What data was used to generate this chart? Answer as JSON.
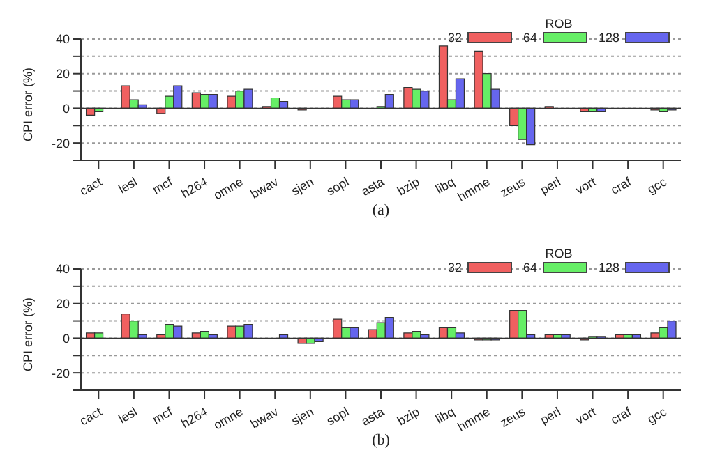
{
  "chart_data": [
    {
      "type": "bar",
      "ylabel": "CPI error (%)",
      "legend_title": "ROB",
      "legend": "top right",
      "grid": "y",
      "ylim": [
        -30,
        40
      ],
      "yticks": [
        {
          "value": -30,
          "label": null
        },
        -20,
        {
          "value": -10,
          "label": null
        },
        0,
        {
          "value": 10,
          "label": null
        },
        20,
        {
          "value": 30,
          "label": null
        },
        40
      ],
      "annotations": [
        "(a)"
      ],
      "categories": [
        "cact",
        "lesl",
        "mcf",
        "h264",
        "omne",
        "bwav",
        "sjen",
        "sopl",
        "asta",
        "bzip",
        "libq",
        "hmme",
        "zeus",
        "perl",
        "vort",
        "craf",
        "gcc"
      ],
      "series": [
        {
          "name": "32",
          "color": "#f06060",
          "values": [
            -4,
            13,
            -3,
            9,
            7,
            1,
            -1,
            7,
            0,
            12,
            36,
            33,
            -10,
            1,
            -2,
            0,
            -1
          ]
        },
        {
          "name": "64",
          "color": "#66ee66",
          "values": [
            -2,
            5,
            7,
            8,
            10,
            6,
            0,
            5,
            1,
            11,
            5,
            20,
            -18,
            0,
            -2,
            0,
            -2
          ]
        },
        {
          "name": "128",
          "color": "#6666ee",
          "values": [
            0,
            2,
            13,
            8,
            11,
            4,
            0,
            5,
            8,
            10,
            17,
            11,
            -21,
            0,
            -2,
            0,
            -1
          ]
        }
      ]
    },
    {
      "type": "bar",
      "ylabel": "CPI error (%)",
      "legend_title": "ROB",
      "legend": "top right",
      "grid": "y",
      "ylim": [
        -30,
        40
      ],
      "yticks": [
        {
          "value": -30,
          "label": null
        },
        -20,
        {
          "value": -10,
          "label": null
        },
        0,
        {
          "value": 10,
          "label": null
        },
        20,
        {
          "value": 30,
          "label": null
        },
        40
      ],
      "annotations": [
        "(b)"
      ],
      "categories": [
        "cact",
        "lesl",
        "mcf",
        "h264",
        "omne",
        "bwav",
        "sjen",
        "sopl",
        "asta",
        "bzip",
        "libq",
        "hmme",
        "zeus",
        "perl",
        "vort",
        "craf",
        "gcc"
      ],
      "series": [
        {
          "name": "32",
          "color": "#f06060",
          "values": [
            3,
            14,
            2,
            3,
            7,
            0,
            -3,
            11,
            5,
            3,
            6,
            -1,
            16,
            2,
            -1,
            2,
            3
          ]
        },
        {
          "name": "64",
          "color": "#66ee66",
          "values": [
            3,
            10,
            8,
            4,
            7,
            0,
            -3,
            6,
            9,
            4,
            6,
            -1,
            16,
            2,
            1,
            2,
            6
          ]
        },
        {
          "name": "128",
          "color": "#6666ee",
          "values": [
            0,
            2,
            7,
            2,
            8,
            2,
            -2,
            6,
            12,
            2,
            3,
            -1,
            2,
            2,
            1,
            2,
            10
          ]
        }
      ]
    }
  ]
}
